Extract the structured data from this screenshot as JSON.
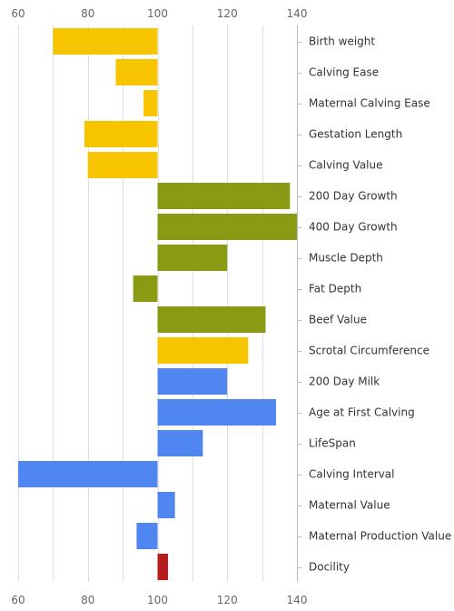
{
  "chart_data": {
    "type": "bar",
    "orientation": "horizontal",
    "title": "",
    "xlabel": "",
    "ylabel": "",
    "xlim": [
      60,
      140
    ],
    "baseline": 100,
    "x_ticks": [
      "60",
      "80",
      "100",
      "120",
      "140"
    ],
    "x_tick_values": [
      60,
      80,
      100,
      120,
      140
    ],
    "grid": true,
    "legend": "none",
    "colors": {
      "yellow": "#f7c500",
      "olive": "#8a9a12",
      "blue": "#4f86ef",
      "red": "#b81c1c"
    },
    "categories": [
      "Birth weight",
      "Calving Ease",
      "Maternal Calving Ease",
      "Gestation Length",
      "Calving Value",
      "200 Day Growth",
      "400 Day Growth",
      "Muscle Depth",
      "Fat Depth",
      "Beef Value",
      "Scrotal Circumference",
      "200 Day Milk",
      "Age at First Calving",
      "LifeSpan",
      "Calving Interval",
      "Maternal Value",
      "Maternal Production Value",
      "Docility"
    ],
    "values": [
      70,
      88,
      96,
      79,
      80,
      138,
      140,
      120,
      93,
      131,
      126,
      120,
      134,
      113,
      60,
      105,
      94,
      103
    ],
    "bar_colors": [
      "yellow",
      "yellow",
      "yellow",
      "yellow",
      "yellow",
      "olive",
      "olive",
      "olive",
      "olive",
      "olive",
      "yellow",
      "blue",
      "blue",
      "blue",
      "blue",
      "blue",
      "blue",
      "red"
    ]
  }
}
